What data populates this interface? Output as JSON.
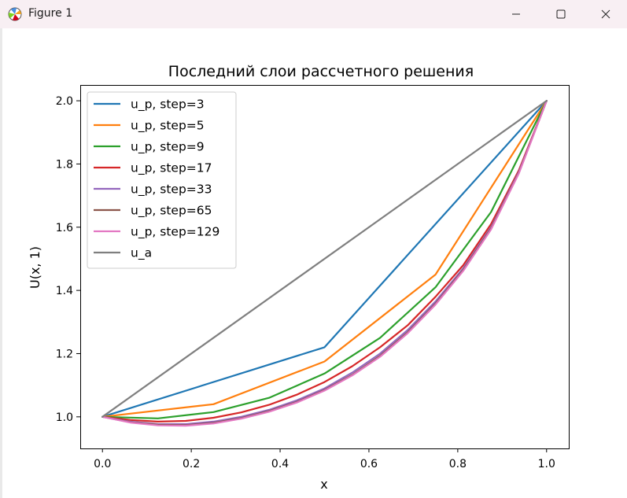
{
  "window": {
    "title": "Figure 1",
    "icon": "matplotlib-icon",
    "controls": [
      "minimize-icon",
      "maximize-icon",
      "close-icon"
    ]
  },
  "chart_data": {
    "type": "line",
    "title": "Последний слои рассчетного решения",
    "xlabel": "x",
    "ylabel": "U(x, 1)",
    "xlim": [
      -0.05,
      1.05
    ],
    "ylim": [
      0.9,
      2.05
    ],
    "xticks": [
      "0.0",
      "0.2",
      "0.4",
      "0.6",
      "0.8",
      "1.0"
    ],
    "xtick_values": [
      0.0,
      0.2,
      0.4,
      0.6,
      0.8,
      1.0
    ],
    "yticks": [
      "1.0",
      "1.2",
      "1.4",
      "1.6",
      "1.8",
      "2.0"
    ],
    "ytick_values": [
      1.0,
      1.2,
      1.4,
      1.6,
      1.8,
      2.0
    ],
    "grid": false,
    "legend_position": "upper left",
    "series": [
      {
        "name": "u_p, step=3",
        "color": "#1f77b4",
        "x": [
          0.0,
          0.5,
          1.0
        ],
        "y": [
          1.0,
          1.22,
          2.0
        ]
      },
      {
        "name": "u_p, step=5",
        "color": "#ff7f0e",
        "x": [
          0.0,
          0.25,
          0.5,
          0.75,
          1.0
        ],
        "y": [
          1.0,
          1.04,
          1.175,
          1.45,
          2.0
        ]
      },
      {
        "name": "u_p, step=9",
        "color": "#2ca02c",
        "x": [
          0.0,
          0.125,
          0.25,
          0.375,
          0.5,
          0.625,
          0.75,
          0.875,
          1.0
        ],
        "y": [
          1.0,
          0.995,
          1.015,
          1.06,
          1.137,
          1.25,
          1.41,
          1.648,
          2.0
        ]
      },
      {
        "name": "u_p, step=17",
        "color": "#d62728",
        "x": [
          0.0,
          0.0625,
          0.125,
          0.1875,
          0.25,
          0.3125,
          0.375,
          0.4375,
          0.5,
          0.5625,
          0.625,
          0.6875,
          0.75,
          0.8125,
          0.875,
          0.9375,
          1.0
        ],
        "y": [
          1.0,
          0.99,
          0.985,
          0.987,
          0.997,
          1.014,
          1.038,
          1.07,
          1.11,
          1.16,
          1.22,
          1.29,
          1.38,
          1.48,
          1.61,
          1.78,
          2.0
        ]
      },
      {
        "name": "u_p, step=33",
        "color": "#9467bd",
        "x": [
          0.0,
          0.0625,
          0.125,
          0.1875,
          0.25,
          0.3125,
          0.375,
          0.4375,
          0.5,
          0.5625,
          0.625,
          0.6875,
          0.75,
          0.8125,
          0.875,
          0.9375,
          1.0
        ],
        "y": [
          1.0,
          0.985,
          0.977,
          0.977,
          0.985,
          1.0,
          1.022,
          1.052,
          1.09,
          1.14,
          1.2,
          1.275,
          1.365,
          1.47,
          1.6,
          1.775,
          2.0
        ]
      },
      {
        "name": "u_p, step=65",
        "color": "#8c564b",
        "x": [
          0.0,
          0.0625,
          0.125,
          0.1875,
          0.25,
          0.3125,
          0.375,
          0.4375,
          0.5,
          0.5625,
          0.625,
          0.6875,
          0.75,
          0.8125,
          0.875,
          0.9375,
          1.0
        ],
        "y": [
          1.0,
          0.983,
          0.975,
          0.974,
          0.981,
          0.996,
          1.018,
          1.047,
          1.085,
          1.133,
          1.193,
          1.268,
          1.358,
          1.465,
          1.596,
          1.772,
          2.0
        ]
      },
      {
        "name": "u_p, step=129",
        "color": "#e377c2",
        "x": [
          0.0,
          0.0625,
          0.125,
          0.1875,
          0.25,
          0.3125,
          0.375,
          0.4375,
          0.5,
          0.5625,
          0.625,
          0.6875,
          0.75,
          0.8125,
          0.875,
          0.9375,
          1.0
        ],
        "y": [
          1.0,
          0.982,
          0.973,
          0.972,
          0.979,
          0.994,
          1.016,
          1.045,
          1.083,
          1.131,
          1.19,
          1.265,
          1.355,
          1.462,
          1.593,
          1.77,
          2.0
        ]
      },
      {
        "name": "u_a",
        "color": "#7f7f7f",
        "x": [
          0.0,
          1.0
        ],
        "y": [
          1.0,
          2.0
        ]
      }
    ]
  }
}
